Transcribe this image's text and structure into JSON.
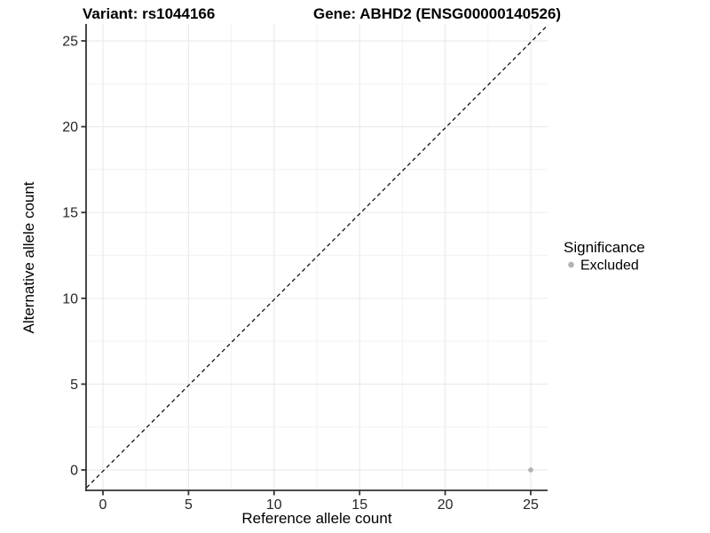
{
  "colors": {
    "background": "#ffffff",
    "grid_major": "#ebebeb",
    "grid_minor": "#f2f2f2",
    "axis_line": "#333333",
    "tick_mark": "#333333",
    "tick_text": "#262626",
    "title_text": "#000000",
    "identity_line": "#000000",
    "excluded_point": "#b4b4b4"
  },
  "chart_data": {
    "type": "scatter",
    "title_variant": "Variant: rs1044166",
    "title_gene": "Gene: ABHD2 (ENSG00000140526)",
    "xlabel": "Reference allele count",
    "ylabel": "Alternative allele count",
    "xlim": [
      -1,
      26
    ],
    "ylim": [
      -1,
      26
    ],
    "xticks": [
      0,
      5,
      10,
      15,
      20,
      25
    ],
    "yticks": [
      0,
      5,
      10,
      15,
      20,
      25
    ],
    "x_minor_gridlines": [
      2.5,
      7.5,
      12.5,
      17.5,
      22.5
    ],
    "y_minor_gridlines": [
      2.5,
      7.5,
      12.5,
      17.5,
      22.5
    ],
    "grid": "major and minor gridlines on, white panel",
    "reference_line": {
      "type": "identity",
      "equation": "y = x",
      "style": "dashed",
      "color": "#000000"
    },
    "series": [
      {
        "name": "Excluded",
        "marker": "circle",
        "color": "#b4b4b4",
        "points": [
          {
            "x": 25,
            "y": 0
          }
        ]
      }
    ],
    "legend": {
      "title": "Significance",
      "position": "right",
      "entries": [
        {
          "label": "Excluded",
          "color": "#b4b4b4"
        }
      ]
    }
  }
}
